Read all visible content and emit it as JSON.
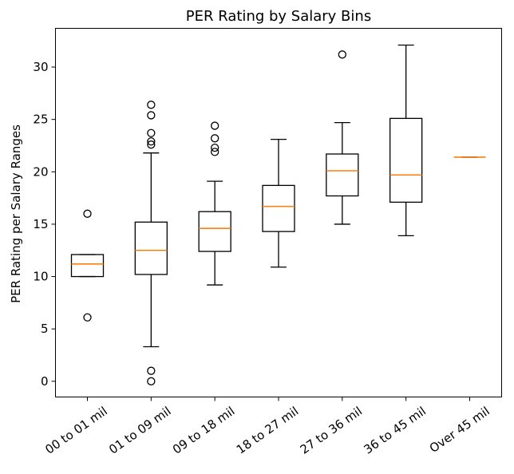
{
  "chart_data": {
    "type": "box",
    "title": "PER Rating by Salary Bins",
    "ylabel": "PER Rating per Salary Ranges",
    "xlabel": "",
    "ylim": [
      -1.5,
      33.7
    ],
    "yticks": [
      0,
      5,
      10,
      15,
      20,
      25,
      30
    ],
    "grid": false,
    "categories": [
      "00 to 01 mil",
      "01 to 09 mil",
      "09 to 18 mil",
      "18 to 27 mil",
      "27 to 36 mil",
      "36 to 45 mil",
      "Over 45 mil"
    ],
    "boxes": [
      {
        "whislo": 10.0,
        "q1": 10.0,
        "med": 11.2,
        "q3": 12.1,
        "whishi": 12.1,
        "fliers": [
          16.0,
          6.1
        ]
      },
      {
        "whislo": 3.3,
        "q1": 10.2,
        "med": 12.5,
        "q3": 15.2,
        "whishi": 21.8,
        "fliers": [
          26.4,
          25.4,
          23.7,
          22.9,
          22.6,
          0.0,
          1.0
        ]
      },
      {
        "whislo": 9.2,
        "q1": 12.4,
        "med": 14.6,
        "q3": 16.2,
        "whishi": 19.1,
        "fliers": [
          24.4,
          23.2,
          22.3,
          21.9
        ]
      },
      {
        "whislo": 10.9,
        "q1": 14.3,
        "med": 16.7,
        "q3": 18.7,
        "whishi": 23.1,
        "fliers": []
      },
      {
        "whislo": 15.0,
        "q1": 17.7,
        "med": 20.1,
        "q3": 21.7,
        "whishi": 24.7,
        "fliers": [
          31.2
        ]
      },
      {
        "whislo": 13.9,
        "q1": 17.1,
        "med": 19.7,
        "q3": 25.1,
        "whishi": 32.1,
        "fliers": []
      },
      {
        "whislo": 21.4,
        "q1": 21.4,
        "med": 21.4,
        "q3": 21.4,
        "whishi": 21.4,
        "fliers": []
      }
    ],
    "colors": {
      "median": "#ff7f0e",
      "box": "#000000"
    }
  }
}
